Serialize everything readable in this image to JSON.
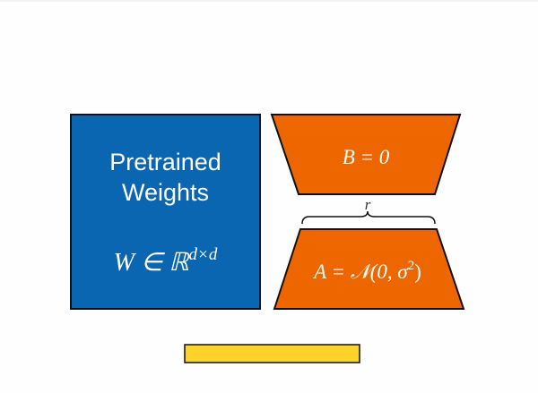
{
  "pretrained": {
    "line1": "Pretrained",
    "line2": "Weights",
    "formula_main": "W ∈ ℝ",
    "formula_sup": "d×d"
  },
  "matrix_b": {
    "label": "B = 0"
  },
  "matrix_a": {
    "label_main": "A = 𝒩(0, σ",
    "label_sup": "2",
    "label_end": ")"
  },
  "rank_label": "r",
  "colors": {
    "pretrained_fill": "#0a66b0",
    "lora_fill": "#ee6600",
    "bar_fill": "#fdd22b",
    "stroke": "#111111"
  }
}
